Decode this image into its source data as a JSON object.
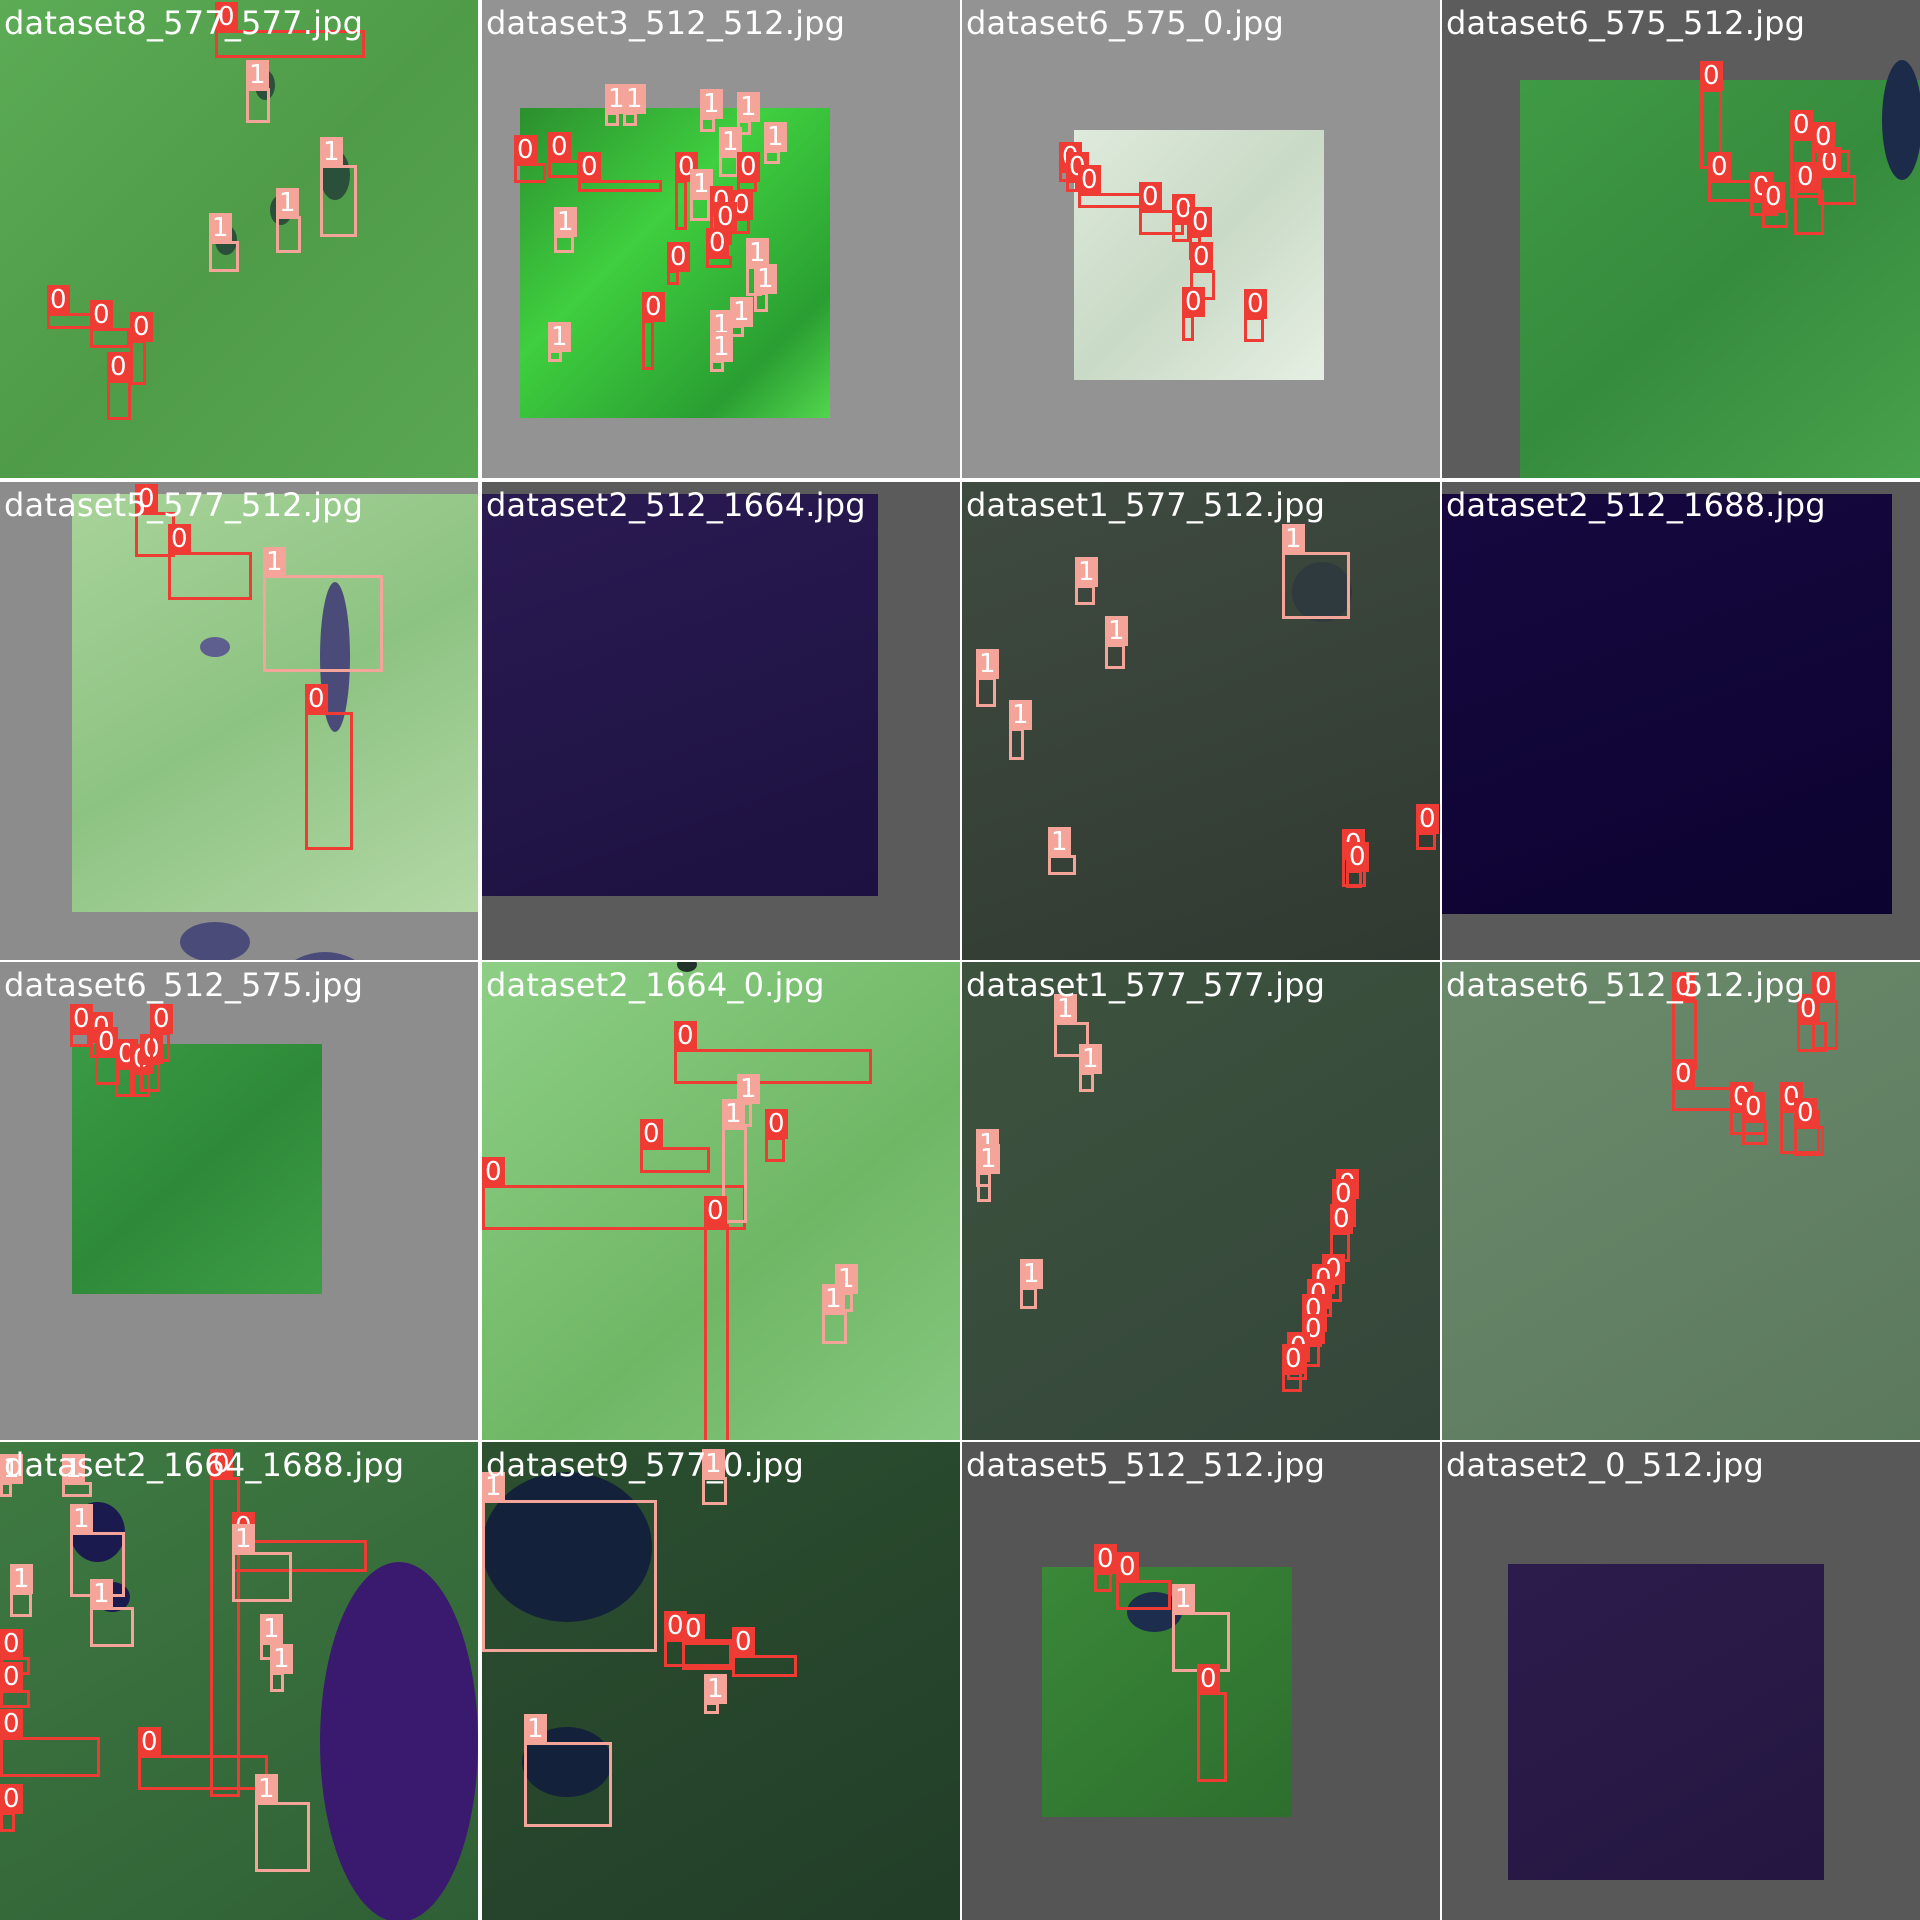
{
  "colors": {
    "class0": "#ee3b33",
    "class1": "#f5a49a",
    "title": "#ffffff"
  },
  "tiles": [
    {
      "title": "dataset8_577_577.jpg",
      "boxes": [
        "0",
        "1",
        "1",
        "1",
        "1",
        "0",
        "0",
        "0",
        "0"
      ]
    },
    {
      "title": "dataset3_512_512.jpg",
      "boxes": [
        "1",
        "1",
        "1",
        "1",
        "1",
        "1",
        "0",
        "0",
        "0",
        "0",
        "1",
        "0",
        "0",
        "0",
        "1",
        "0",
        "0",
        "1",
        "1",
        "0",
        "0",
        "1",
        "1",
        "1",
        "1"
      ]
    },
    {
      "title": "dataset6_575_0.jpg",
      "boxes": [
        "0",
        "0",
        "0",
        "0",
        "0",
        "0",
        "0",
        "0",
        "0"
      ]
    },
    {
      "title": "dataset6_575_512.jpg",
      "boxes": [
        "0",
        "0",
        "0",
        "0",
        "0",
        "0",
        "0",
        "0"
      ]
    },
    {
      "title": "dataset5_577_512.jpg",
      "boxes": [
        "0",
        "0",
        "1",
        "0"
      ]
    },
    {
      "title": "dataset2_512_1664.jpg",
      "boxes": []
    },
    {
      "title": "dataset1_577_512.jpg",
      "boxes": [
        "1",
        "1",
        "1",
        "1",
        "1",
        "1",
        "0",
        "0",
        "0"
      ]
    },
    {
      "title": "dataset2_512_1688.jpg",
      "boxes": []
    },
    {
      "title": "dataset6_512_575.jpg",
      "boxes": [
        "0",
        "0",
        "0",
        "0",
        "0",
        "0",
        "0"
      ]
    },
    {
      "title": "dataset2_1664_0.jpg",
      "boxes": [
        "0",
        "1",
        "0",
        "0",
        "1",
        "0",
        "0",
        "1",
        "1"
      ]
    },
    {
      "title": "dataset1_577_577.jpg",
      "boxes": [
        "1",
        "1",
        "1",
        "1",
        "1",
        "0",
        "0",
        "0",
        "0",
        "0",
        "0",
        "0",
        "0",
        "0",
        "0"
      ]
    },
    {
      "title": "dataset6_512_512.jpg",
      "boxes": [
        "0",
        "0",
        "0",
        "0",
        "0",
        "0",
        "0",
        "0"
      ]
    },
    {
      "title": "dataset2_1664_1688.jpg",
      "boxes": [
        "1",
        "1",
        "0",
        "1",
        "1",
        "0",
        "1",
        "1",
        "1",
        "0",
        "0",
        "0",
        "0",
        "0",
        "1",
        "1"
      ]
    },
    {
      "title": "dataset9_577_0.jpg",
      "boxes": [
        "1",
        "1",
        "1",
        "0",
        "0",
        "0",
        "1"
      ]
    },
    {
      "title": "dataset5_512_512.jpg",
      "boxes": [
        "0",
        "0",
        "1",
        "0"
      ]
    },
    {
      "title": "dataset2_0_512.jpg",
      "boxes": []
    }
  ]
}
